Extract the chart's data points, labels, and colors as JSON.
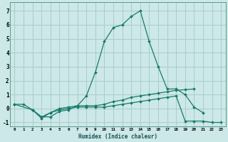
{
  "xlabel": "Humidex (Indice chaleur)",
  "background_color": "#cce8e8",
  "grid_color": "#aacccc",
  "line_color": "#1a7a6a",
  "xlim": [
    -0.5,
    23.5
  ],
  "ylim": [
    -1.3,
    7.6
  ],
  "yticks": [
    -1,
    0,
    1,
    2,
    3,
    4,
    5,
    6,
    7
  ],
  "xtick_labels": [
    "0",
    "1",
    "2",
    "3",
    "4",
    "5",
    "6",
    "7",
    "8",
    "9",
    "10",
    "11",
    "12",
    "13",
    "14",
    "15",
    "16",
    "17",
    "18",
    "19",
    "20",
    "21",
    "22",
    "23"
  ],
  "lines": [
    {
      "x": [
        0,
        1,
        2,
        3,
        4,
        5,
        6,
        7,
        8,
        9,
        10,
        11,
        12,
        13,
        14,
        15,
        16,
        17,
        18,
        19,
        20,
        21
      ],
      "y": [
        0.3,
        0.3,
        -0.1,
        -0.6,
        -0.6,
        -0.2,
        -0.1,
        0.2,
        0.9,
        2.6,
        4.8,
        5.8,
        6.0,
        6.6,
        7.0,
        4.8,
        3.0,
        1.4,
        1.4,
        1.0,
        0.1,
        -0.3
      ]
    },
    {
      "x": [
        0,
        2,
        3,
        4,
        5,
        6,
        7,
        8,
        9,
        10,
        11,
        12,
        13,
        14,
        15,
        16,
        17,
        18,
        19,
        20
      ],
      "y": [
        0.3,
        -0.1,
        -0.7,
        -0.3,
        0.0,
        0.1,
        0.2,
        0.2,
        0.2,
        0.3,
        0.5,
        0.6,
        0.8,
        0.9,
        1.0,
        1.1,
        1.2,
        1.3,
        1.35,
        1.4
      ]
    },
    {
      "x": [
        2,
        3,
        4,
        5,
        6,
        7,
        8,
        9,
        10,
        11,
        12,
        13,
        14,
        15,
        16,
        17,
        18,
        19,
        20,
        21,
        22,
        23
      ],
      "y": [
        -0.1,
        -0.6,
        -0.3,
        -0.1,
        0.0,
        0.1,
        0.1,
        0.1,
        0.1,
        0.2,
        0.3,
        0.4,
        0.5,
        0.6,
        0.7,
        0.8,
        0.9,
        -0.9,
        -0.9,
        -0.9,
        -1.0,
        -1.0
      ]
    }
  ]
}
